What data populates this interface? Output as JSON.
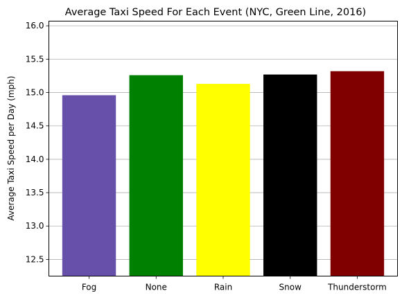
{
  "chart_data": {
    "type": "bar",
    "title": "Average Taxi Speed For Each Event (NYC, Green Line, 2016)",
    "xlabel": "",
    "ylabel": "Average Taxi Speed per Day (mph)",
    "categories": [
      "Fog",
      "None",
      "Rain",
      "Snow",
      "Thunderstorm"
    ],
    "values": [
      14.96,
      15.26,
      15.13,
      15.27,
      15.32
    ],
    "colors": [
      "#6650aa",
      "#008000",
      "#ffff00",
      "#000000",
      "#800000"
    ],
    "ylim": [
      12.25,
      16.07
    ],
    "yticks": [
      12.5,
      13.0,
      13.5,
      14.0,
      14.5,
      15.0,
      15.5,
      16.0
    ],
    "ytick_labels": [
      "12.5",
      "13.0",
      "13.5",
      "14.0",
      "14.5",
      "15.0",
      "15.5",
      "16.0"
    ],
    "grid": "y",
    "legend": "none"
  }
}
